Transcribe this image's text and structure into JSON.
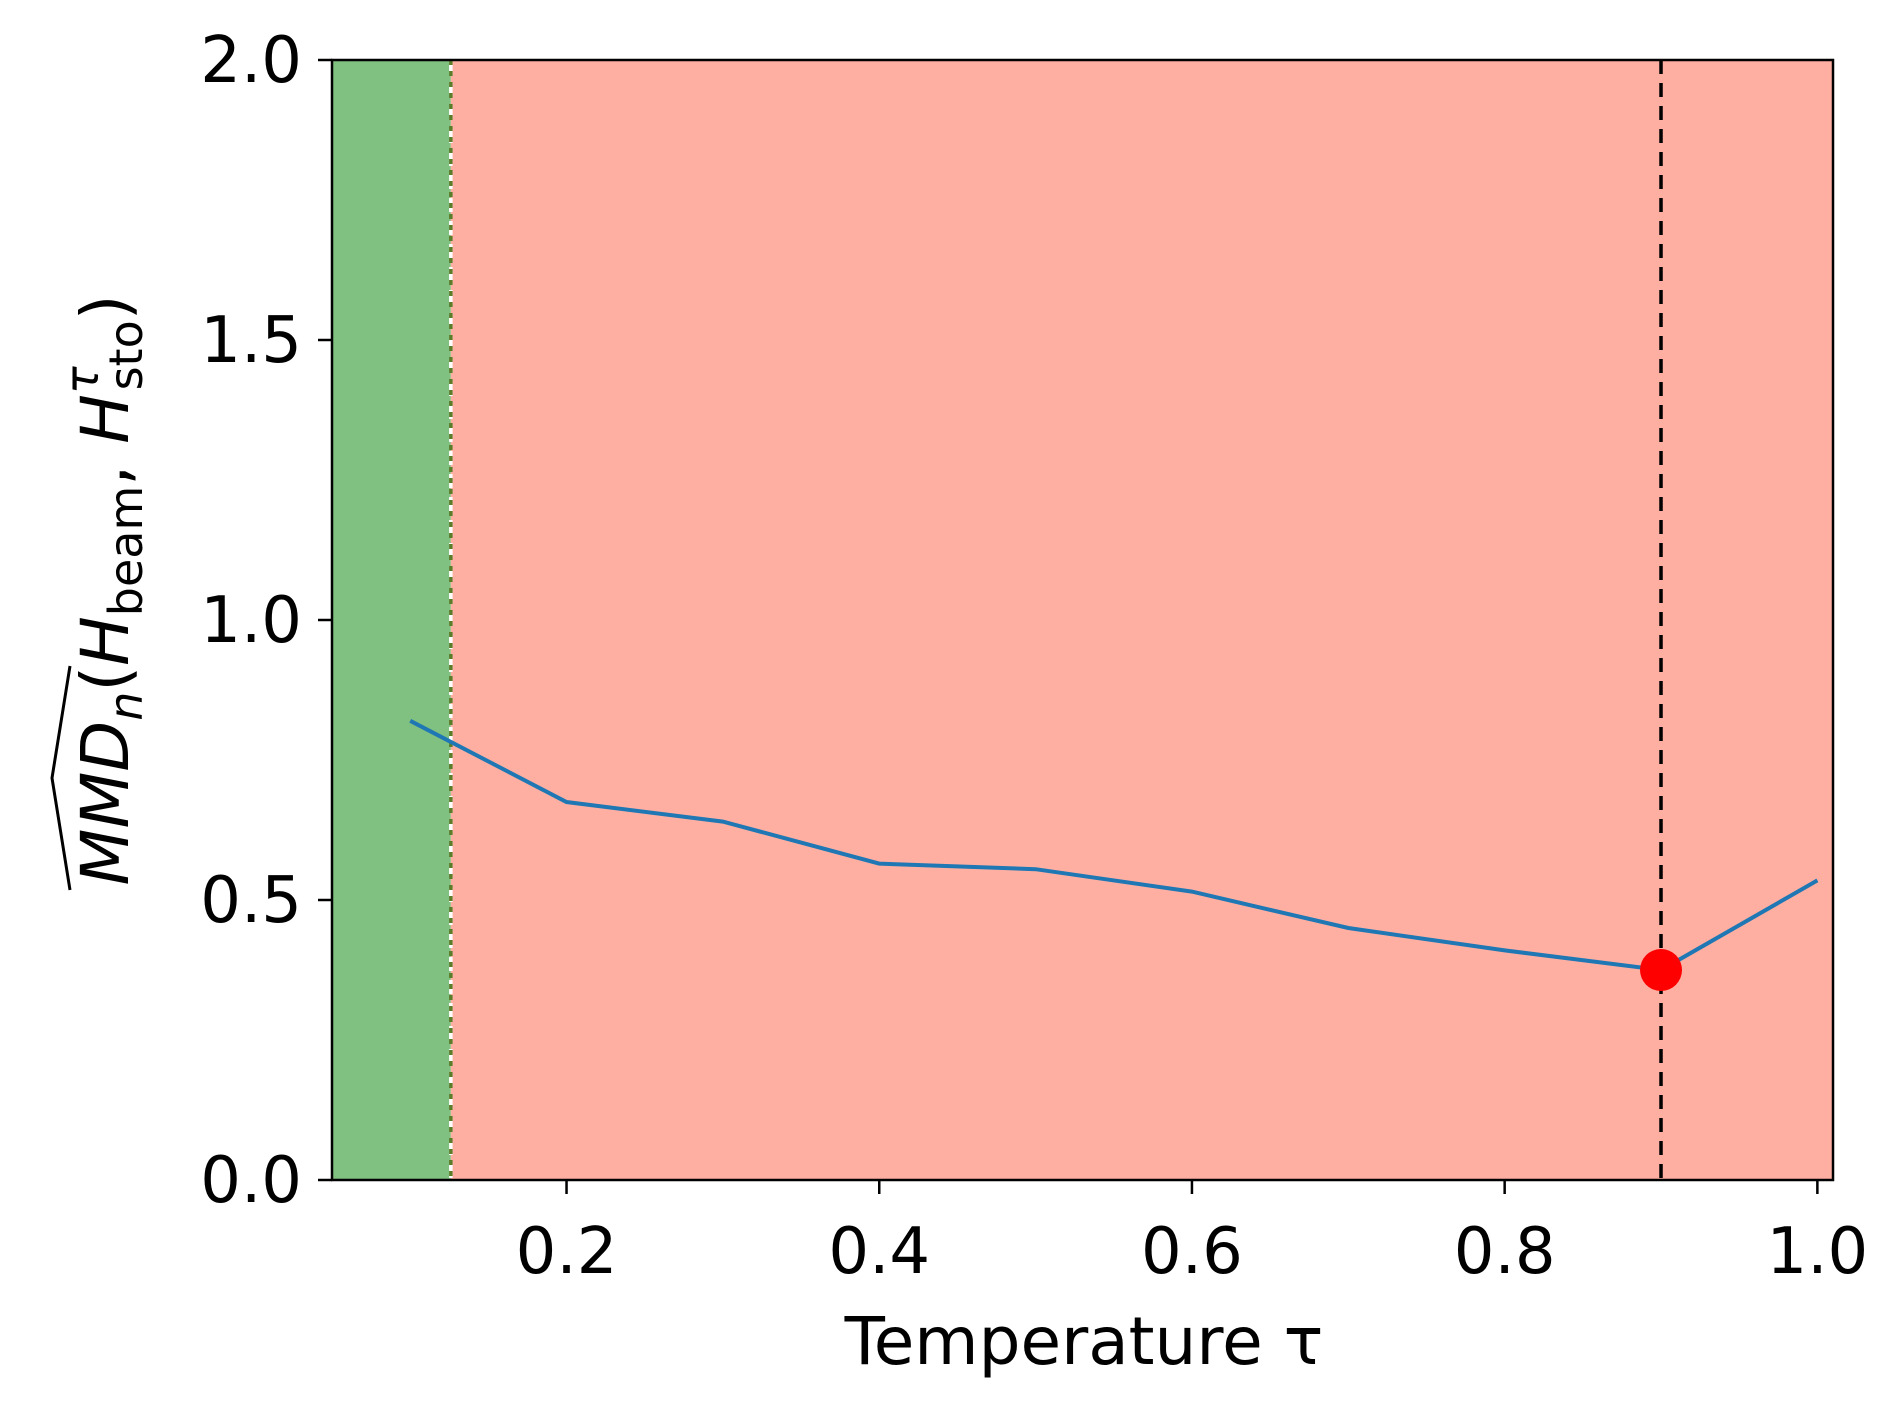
{
  "chart_data": {
    "type": "line",
    "xlabel": "Temperature τ",
    "ylabel": {
      "main": "MMD",
      "sub_n": "n",
      "open": "(",
      "h1": "H",
      "h1_sub": "beam",
      "comma": ", ",
      "h2": "H",
      "h2_sub": "sto",
      "h2_sup": "τ",
      "close": ")"
    },
    "xlim": [
      0.05,
      1.01
    ],
    "ylim": [
      0.0,
      2.0
    ],
    "xticks": [
      0.2,
      0.4,
      0.6,
      0.8,
      1.0
    ],
    "xtick_labels": [
      "0.2",
      "0.4",
      "0.6",
      "0.8",
      "1.0"
    ],
    "yticks": [
      0.0,
      0.5,
      1.0,
      1.5,
      2.0
    ],
    "ytick_labels": [
      "0.0",
      "0.5",
      "1.0",
      "1.5",
      "2.0"
    ],
    "grid": false,
    "series": [
      {
        "color": "#1f77b4",
        "x": [
          0.1,
          0.2,
          0.3,
          0.4,
          0.5,
          0.6,
          0.7,
          0.8,
          0.9,
          1.0
        ],
        "y": [
          0.82,
          0.675,
          0.64,
          0.565,
          0.555,
          0.515,
          0.45,
          0.41,
          0.375,
          0.535
        ]
      }
    ],
    "regions": [
      {
        "x": [
          0.05,
          0.126
        ],
        "color": "#80c080"
      },
      {
        "x": [
          0.126,
          1.01
        ],
        "color": "#ffafa2"
      }
    ],
    "vlines": [
      {
        "x": 0.126,
        "style": "dashed",
        "color": "#ffffff"
      },
      {
        "x": 0.126,
        "style": "dotted",
        "color": "#5a7d2a"
      },
      {
        "x": 0.9,
        "style": "dashed",
        "color": "#000000"
      }
    ],
    "highlight_point": {
      "x": 0.9,
      "y": 0.375,
      "color": "#ff0000"
    }
  }
}
